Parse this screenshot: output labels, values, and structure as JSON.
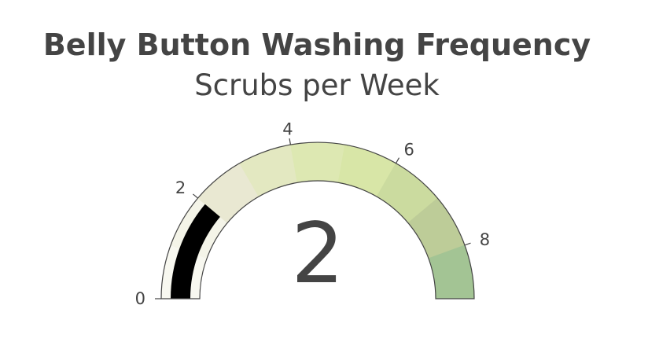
{
  "chart_data": {
    "type": "gauge",
    "title": "Belly Button Washing Frequency",
    "subtitle": "Scrubs per Week",
    "value": 2,
    "value_label": "2",
    "range": [
      0,
      9
    ],
    "tick_values": [
      0,
      2,
      4,
      6,
      8
    ],
    "tick_labels": [
      "0",
      "2",
      "4",
      "6",
      "8"
    ],
    "bar_color": "#000000",
    "border_color": "#444444",
    "steps": [
      {
        "range": [
          0,
          1
        ],
        "color": "#f8f8f0"
      },
      {
        "range": [
          1,
          2
        ],
        "color": "#f4f4e8"
      },
      {
        "range": [
          2,
          3
        ],
        "color": "#e9e8d2"
      },
      {
        "range": [
          3,
          4
        ],
        "color": "#e3e8c1"
      },
      {
        "range": [
          4,
          5
        ],
        "color": "#dde8b2"
      },
      {
        "range": [
          5,
          6
        ],
        "color": "#d8e6a7"
      },
      {
        "range": [
          6,
          7
        ],
        "color": "#cbdb9f"
      },
      {
        "range": [
          7,
          8
        ],
        "color": "#bdcc98"
      },
      {
        "range": [
          8,
          9
        ],
        "color": "#a3c494"
      }
    ]
  }
}
